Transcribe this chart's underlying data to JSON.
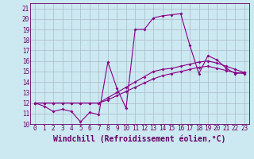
{
  "xlabel": "Windchill (Refroidissement éolien,°C)",
  "ylabel": "",
  "background_color": "#cce8f0",
  "line_color": "#880088",
  "xlim": [
    -0.5,
    23.5
  ],
  "ylim": [
    10,
    21.5
  ],
  "xticks": [
    0,
    1,
    2,
    3,
    4,
    5,
    6,
    7,
    8,
    9,
    10,
    11,
    12,
    13,
    14,
    15,
    16,
    17,
    18,
    19,
    20,
    21,
    22,
    23
  ],
  "yticks": [
    10,
    11,
    12,
    13,
    14,
    15,
    16,
    17,
    18,
    19,
    20,
    21
  ],
  "series": [
    [
      12.0,
      11.7,
      11.2,
      11.4,
      11.2,
      10.2,
      11.1,
      10.9,
      15.9,
      13.4,
      11.5,
      19.0,
      19.0,
      20.1,
      20.3,
      20.4,
      20.5,
      17.5,
      14.8,
      16.5,
      16.1,
      15.3,
      14.8,
      14.9
    ],
    [
      12.0,
      12.0,
      12.0,
      12.0,
      12.0,
      12.0,
      12.0,
      12.0,
      12.5,
      13.0,
      13.5,
      14.0,
      14.5,
      15.0,
      15.2,
      15.3,
      15.5,
      15.7,
      15.9,
      16.0,
      15.8,
      15.5,
      15.2,
      14.9
    ],
    [
      12.0,
      12.0,
      12.0,
      12.0,
      12.0,
      12.0,
      12.0,
      12.0,
      12.3,
      12.7,
      13.1,
      13.5,
      13.9,
      14.3,
      14.6,
      14.8,
      15.0,
      15.2,
      15.4,
      15.5,
      15.3,
      15.1,
      14.9,
      14.8
    ]
  ],
  "grid_color": "#aabbcc",
  "tick_color": "#660066",
  "tick_fontsize": 5.5,
  "label_fontsize": 7.0,
  "marker_size": 2.0,
  "line_width": 0.8
}
